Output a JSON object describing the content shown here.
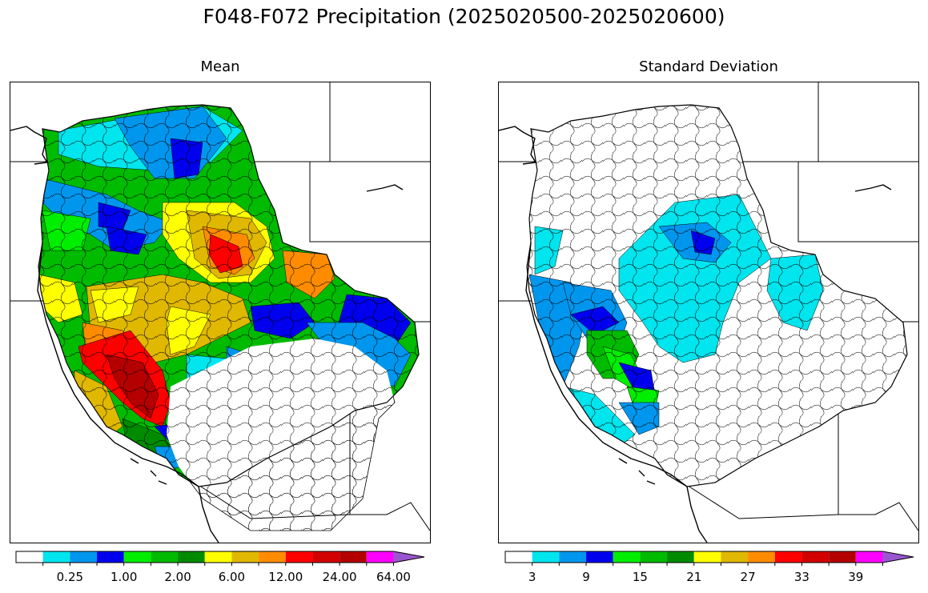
{
  "title": "F048-F072 Precipitation (2025020500-2025020600)",
  "panels": {
    "mean": {
      "title": "Mean"
    },
    "std": {
      "title": "Standard Deviation"
    }
  },
  "colorbar_colors": [
    "#ffffff",
    "#00e5ee",
    "#0096ee",
    "#0000ee",
    "#00ee00",
    "#00bb00",
    "#008b00",
    "#ffff00",
    "#e0b800",
    "#ff8c00",
    "#ff0000",
    "#d20000",
    "#b40000",
    "#ff00ff",
    "#9a56d0"
  ],
  "colorbars": {
    "mean": {
      "ticks": [
        "0.25",
        "1.00",
        "2.00",
        "6.00",
        "12.00",
        "24.00",
        "64.00"
      ],
      "tick_positions": [
        2,
        4,
        6,
        8,
        10,
        12,
        14
      ]
    },
    "std": {
      "ticks": [
        "3",
        "9",
        "15",
        "21",
        "27",
        "33",
        "39"
      ],
      "tick_positions": [
        1,
        3,
        5,
        7,
        9,
        11,
        13
      ]
    }
  },
  "map": {
    "region": "Western United States",
    "mean_colors": {
      "heavy": "#ff0000",
      "dark_heavy": "#b40000",
      "gold": "#e0b800",
      "yellow": "#ffff00",
      "orange": "#ff8c00",
      "green": "#00bb00",
      "dkgreen": "#008b00",
      "ltgreen": "#00ee00",
      "blue": "#0000ee",
      "mblue": "#0096ee",
      "cyan": "#00e5ee"
    },
    "std_colors": {
      "cyan": "#00e5ee",
      "mblue": "#0096ee",
      "blue": "#0000ee",
      "ltgreen": "#00ee00",
      "green": "#00bb00"
    }
  }
}
